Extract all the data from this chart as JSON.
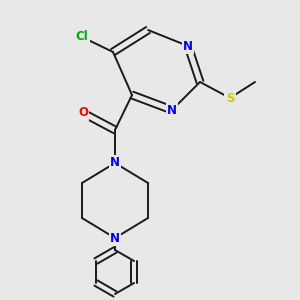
{
  "background_color": "#e8e8e8",
  "figsize": [
    3.0,
    3.0
  ],
  "dpi": 100,
  "bond_color": "#1a1a1a",
  "atom_colors": {
    "N": "#0000ee",
    "O": "#ff0000",
    "S": "#cccc00",
    "Cl": "#00aa00"
  },
  "font_size": 8.5
}
